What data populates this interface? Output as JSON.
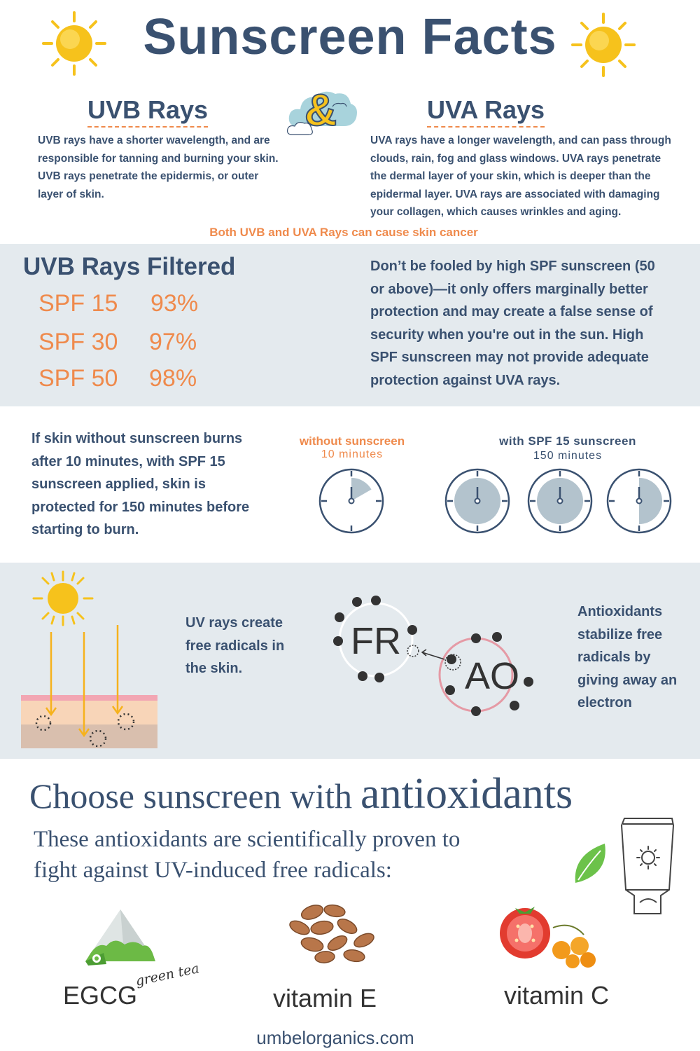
{
  "header": {
    "title": "Sunscreen Facts",
    "ampersand": "&"
  },
  "uvb": {
    "heading": "UVB Rays",
    "text": "UVB rays have a shorter wavelength, and are responsible for tanning and burning your skin. UVB rays penetrate the epidermis, or outer layer of skin."
  },
  "uva": {
    "heading": "UVA Rays",
    "text": "UVA rays have a longer wavelength, and can pass through clouds, rain, fog and glass windows. UVA rays penetrate the dermal layer of your skin, which is deeper than the epidermal layer. UVA rays are associated with damaging your collagen, which causes wrinkles and aging."
  },
  "both_note": "Both UVB and UVA Rays can cause skin cancer",
  "filtered": {
    "heading": "UVB Rays Filtered",
    "rows": [
      {
        "spf": "SPF 15",
        "pct": "93%"
      },
      {
        "spf": "SPF 30",
        "pct": "97%"
      },
      {
        "spf": "SPF 50",
        "pct": "98%"
      }
    ],
    "note": "Don’t be fooled by high SPF sunscreen (50 or above)—it only offers marginally better protection and may create a false sense of security when you're out in the sun. High SPF sunscreen may not provide adequate protection against UVA rays."
  },
  "burn": {
    "text": "If skin without sunscreen burns after 10 minutes, with SPF 15 sunscreen applied, skin is protected for 150 minutes before starting to burn.",
    "without_label": "without sunscreen",
    "without_time": "10 minutes",
    "with_label": "with SPF 15 sunscreen",
    "with_time": "150 minutes",
    "clock_fractions": [
      0.167,
      1.0,
      1.0,
      0.5
    ]
  },
  "radicals": {
    "uv_text": "UV rays create free radicals in the skin.",
    "fr_label": "FR",
    "ao_label": "AO",
    "ao_text": "Antioxidants stabilize free radicals by giving away an electron"
  },
  "choose": {
    "heading_a": "Choose sunscreen with",
    "heading_b": "antioxidants",
    "sub": "These antioxidants are scientifically proven to fight against UV-induced free radicals:",
    "items": [
      {
        "label": "EGCG",
        "note": "green tea"
      },
      {
        "label": "vitamin E",
        "note": ""
      },
      {
        "label": "vitamin C",
        "note": ""
      }
    ]
  },
  "footer": {
    "site": "umbelorganics.com"
  },
  "colors": {
    "navy": "#3a5170",
    "orange": "#ef8a4c",
    "band": "#e4eaee",
    "sun": "#f6c21c",
    "clock_fill": "#b3c3cd"
  }
}
